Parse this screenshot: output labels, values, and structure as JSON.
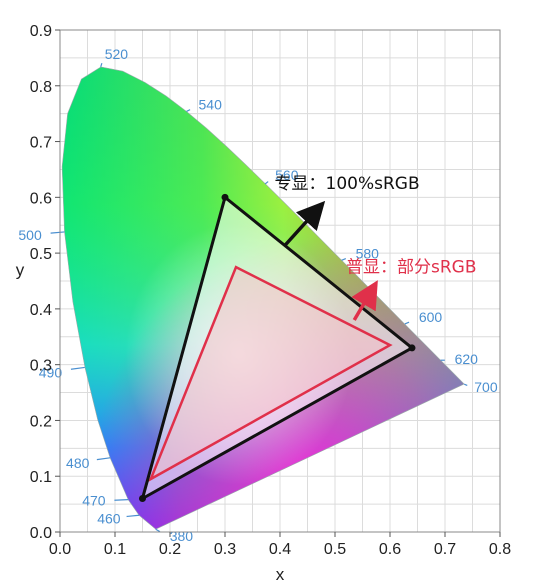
{
  "chart_data": {
    "type": "scatter",
    "xlabel": "x",
    "ylabel": "y",
    "xlim": [
      0.0,
      0.8
    ],
    "ylim": [
      0.0,
      0.9
    ],
    "grid": true,
    "x_ticks": [
      "0.0",
      "0.1",
      "0.2",
      "0.3",
      "0.4",
      "0.5",
      "0.6",
      "0.7",
      "0.8"
    ],
    "y_ticks": [
      "0.0",
      "0.1",
      "0.2",
      "0.3",
      "0.4",
      "0.5",
      "0.6",
      "0.7",
      "0.8",
      "0.9"
    ],
    "spectral_locus_labels": [
      {
        "text": "380",
        "x": 0.174,
        "y": 0.005
      },
      {
        "text": "460",
        "x": 0.144,
        "y": 0.03
      },
      {
        "text": "470",
        "x": 0.124,
        "y": 0.058
      },
      {
        "text": "480",
        "x": 0.091,
        "y": 0.133
      },
      {
        "text": "490",
        "x": 0.045,
        "y": 0.295
      },
      {
        "text": "500",
        "x": 0.008,
        "y": 0.538
      },
      {
        "text": "520",
        "x": 0.074,
        "y": 0.834
      },
      {
        "text": "540",
        "x": 0.23,
        "y": 0.754
      },
      {
        "text": "560",
        "x": 0.373,
        "y": 0.624
      },
      {
        "text": "580",
        "x": 0.512,
        "y": 0.487
      },
      {
        "text": "600",
        "x": 0.627,
        "y": 0.373
      },
      {
        "text": "620",
        "x": 0.692,
        "y": 0.308
      },
      {
        "text": "700",
        "x": 0.735,
        "y": 0.265
      }
    ],
    "series": [
      {
        "name": "专显：100%sRGB",
        "color": "#111111",
        "points": [
          {
            "x": 0.64,
            "y": 0.33
          },
          {
            "x": 0.3,
            "y": 0.6
          },
          {
            "x": 0.15,
            "y": 0.06
          }
        ]
      },
      {
        "name": "普显：部分sRGB",
        "color": "#e0304a",
        "points": [
          {
            "x": 0.6,
            "y": 0.335
          },
          {
            "x": 0.32,
            "y": 0.475
          },
          {
            "x": 0.165,
            "y": 0.095
          }
        ]
      }
    ],
    "annotations": [
      {
        "text": "专显：100%sRGB",
        "color": "#111111"
      },
      {
        "text": "普显：部分sRGB",
        "color": "#e0304a"
      }
    ]
  }
}
